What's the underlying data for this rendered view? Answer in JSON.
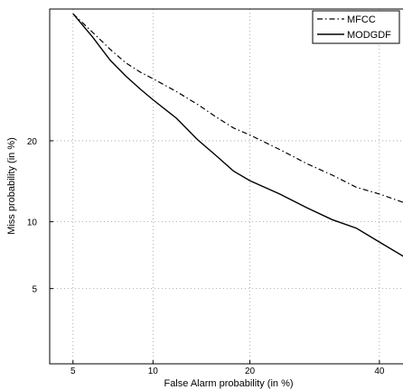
{
  "chart_data": {
    "type": "line",
    "title": "",
    "xlabel": "False Alarm probability (in %)",
    "ylabel": "Miss probability (in %)",
    "x_scale": "normal-deviate",
    "y_scale": "normal-deviate",
    "xlim": [
      4,
      45
    ],
    "ylim": [
      2,
      45
    ],
    "x_ticks": [
      5,
      10,
      20,
      40
    ],
    "y_ticks": [
      5,
      10,
      20
    ],
    "grid": true,
    "legend_position": "top-right",
    "series": [
      {
        "name": "MFCC",
        "line_style": "dash-dot",
        "color": "#000000",
        "points": [
          [
            5,
            44
          ],
          [
            6,
            40
          ],
          [
            7,
            36.5
          ],
          [
            8,
            33.8
          ],
          [
            9,
            32.0
          ],
          [
            10,
            30.7
          ],
          [
            12,
            28.3
          ],
          [
            14,
            26.0
          ],
          [
            16,
            23.8
          ],
          [
            18,
            22.0
          ],
          [
            20,
            20.9
          ],
          [
            24,
            18.7
          ],
          [
            28,
            16.7
          ],
          [
            32,
            15.2
          ],
          [
            36,
            13.7
          ],
          [
            40,
            12.9
          ],
          [
            45,
            11.8
          ]
        ]
      },
      {
        "name": "MODGDF",
        "line_style": "solid",
        "color": "#000000",
        "points": [
          [
            5,
            44
          ],
          [
            6,
            39
          ],
          [
            7,
            34.3
          ],
          [
            8,
            31.2
          ],
          [
            9,
            28.8
          ],
          [
            10,
            26.8
          ],
          [
            12,
            23.6
          ],
          [
            14,
            20.2
          ],
          [
            16,
            17.8
          ],
          [
            18,
            15.7
          ],
          [
            20,
            14.5
          ],
          [
            24,
            12.9
          ],
          [
            28,
            11.4
          ],
          [
            32,
            10.2
          ],
          [
            36,
            9.4
          ],
          [
            40,
            8.2
          ],
          [
            45,
            6.9
          ]
        ]
      }
    ]
  }
}
